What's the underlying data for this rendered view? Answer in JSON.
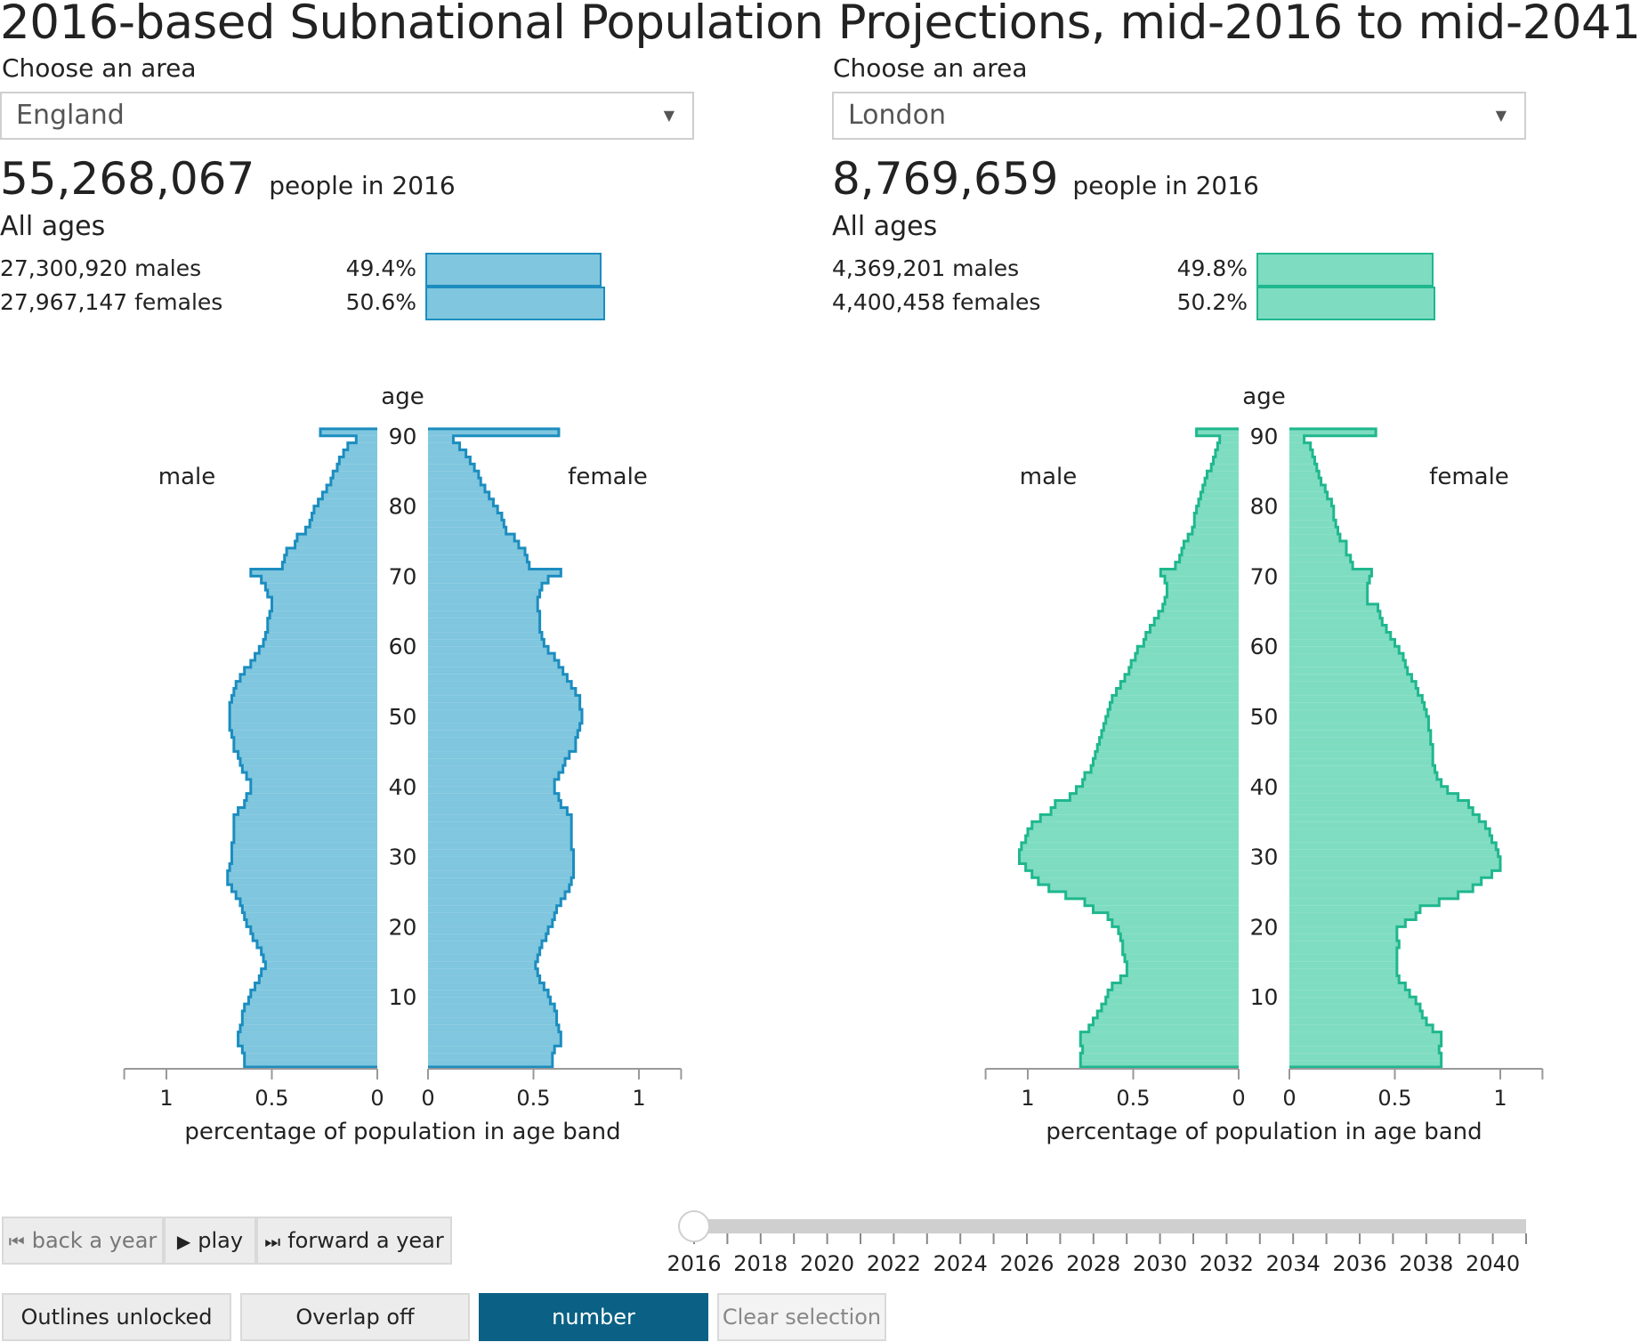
{
  "title": "2016-based Subnational Population Projections, mid-2016 to mid-2041",
  "panels": [
    {
      "choose_label": "Choose an area",
      "area": "England",
      "total": "55,268,067",
      "total_suffix": "people in 2016",
      "all_ages": "All ages",
      "males_text": "27,300,920 males",
      "males_pct": "49.4%",
      "males_share": 49.4,
      "females_text": "27,967,147 females",
      "females_pct": "50.6%",
      "females_share": 50.6,
      "color_fill": "#7fc6de",
      "color_stroke": "#1b8dbf"
    },
    {
      "choose_label": "Choose an area",
      "area": "London",
      "total": "8,769,659",
      "total_suffix": "people in 2016",
      "all_ages": "All ages",
      "males_text": "4,369,201 males",
      "males_pct": "49.8%",
      "males_share": 49.8,
      "females_text": "4,400,458 females",
      "females_pct": "50.2%",
      "females_share": 50.2,
      "color_fill": "#7edcc1",
      "color_stroke": "#1fb78e"
    }
  ],
  "chart_data": [
    {
      "type": "bar",
      "subtype": "population-pyramid",
      "area": "England",
      "year": 2016,
      "age_label": "age",
      "male_label": "male",
      "female_label": "female",
      "xlabel": "percentage of population in age band",
      "xlim": [
        0,
        1.2
      ],
      "x_ticks": [
        "1",
        "0.5",
        "0"
      ],
      "x_ticks_female": [
        "0",
        "0.5",
        "1"
      ],
      "x_tick_values": [
        1,
        0.5,
        0
      ],
      "age_ticks": [
        10,
        20,
        30,
        40,
        50,
        60,
        70,
        80,
        90
      ],
      "ages": [
        0,
        1,
        2,
        3,
        4,
        5,
        6,
        7,
        8,
        9,
        10,
        11,
        12,
        13,
        14,
        15,
        16,
        17,
        18,
        19,
        20,
        21,
        22,
        23,
        24,
        25,
        26,
        27,
        28,
        29,
        30,
        31,
        32,
        33,
        34,
        35,
        36,
        37,
        38,
        39,
        40,
        41,
        42,
        43,
        44,
        45,
        46,
        47,
        48,
        49,
        50,
        51,
        52,
        53,
        54,
        55,
        56,
        57,
        58,
        59,
        60,
        61,
        62,
        63,
        64,
        65,
        66,
        67,
        68,
        69,
        70,
        71,
        72,
        73,
        74,
        75,
        76,
        77,
        78,
        79,
        80,
        81,
        82,
        83,
        84,
        85,
        86,
        87,
        88,
        89,
        90
      ],
      "male": [
        0.63,
        0.63,
        0.64,
        0.66,
        0.66,
        0.65,
        0.64,
        0.64,
        0.63,
        0.61,
        0.6,
        0.58,
        0.56,
        0.55,
        0.53,
        0.54,
        0.55,
        0.57,
        0.59,
        0.6,
        0.62,
        0.63,
        0.64,
        0.65,
        0.67,
        0.69,
        0.71,
        0.71,
        0.7,
        0.69,
        0.69,
        0.69,
        0.68,
        0.68,
        0.68,
        0.68,
        0.66,
        0.63,
        0.62,
        0.6,
        0.6,
        0.62,
        0.64,
        0.65,
        0.66,
        0.68,
        0.68,
        0.69,
        0.7,
        0.7,
        0.7,
        0.7,
        0.69,
        0.68,
        0.67,
        0.65,
        0.63,
        0.6,
        0.58,
        0.56,
        0.54,
        0.53,
        0.52,
        0.52,
        0.51,
        0.5,
        0.5,
        0.52,
        0.53,
        0.55,
        0.6,
        0.45,
        0.44,
        0.43,
        0.39,
        0.38,
        0.34,
        0.32,
        0.31,
        0.3,
        0.28,
        0.26,
        0.24,
        0.22,
        0.21,
        0.19,
        0.18,
        0.16,
        0.14,
        0.1,
        0.27
      ],
      "female": [
        0.59,
        0.59,
        0.6,
        0.63,
        0.63,
        0.62,
        0.61,
        0.61,
        0.6,
        0.58,
        0.57,
        0.55,
        0.53,
        0.52,
        0.51,
        0.52,
        0.53,
        0.54,
        0.56,
        0.57,
        0.59,
        0.6,
        0.61,
        0.63,
        0.65,
        0.67,
        0.68,
        0.69,
        0.69,
        0.69,
        0.69,
        0.68,
        0.68,
        0.68,
        0.68,
        0.68,
        0.66,
        0.63,
        0.62,
        0.6,
        0.6,
        0.62,
        0.64,
        0.65,
        0.67,
        0.7,
        0.7,
        0.71,
        0.72,
        0.73,
        0.73,
        0.72,
        0.72,
        0.7,
        0.68,
        0.66,
        0.64,
        0.62,
        0.6,
        0.57,
        0.55,
        0.54,
        0.53,
        0.53,
        0.53,
        0.52,
        0.52,
        0.53,
        0.54,
        0.57,
        0.63,
        0.48,
        0.47,
        0.46,
        0.43,
        0.41,
        0.37,
        0.36,
        0.35,
        0.33,
        0.31,
        0.29,
        0.27,
        0.25,
        0.24,
        0.22,
        0.2,
        0.18,
        0.15,
        0.12,
        0.62
      ]
    },
    {
      "type": "bar",
      "subtype": "population-pyramid",
      "area": "London",
      "year": 2016,
      "age_label": "age",
      "male_label": "male",
      "female_label": "female",
      "xlabel": "percentage of population in age band",
      "xlim": [
        0,
        1.2
      ],
      "x_ticks": [
        "1",
        "0.5",
        "0"
      ],
      "x_ticks_female": [
        "0",
        "0.5",
        "1"
      ],
      "x_tick_values": [
        1,
        0.5,
        0
      ],
      "age_ticks": [
        10,
        20,
        30,
        40,
        50,
        60,
        70,
        80,
        90
      ],
      "ages": [
        0,
        1,
        2,
        3,
        4,
        5,
        6,
        7,
        8,
        9,
        10,
        11,
        12,
        13,
        14,
        15,
        16,
        17,
        18,
        19,
        20,
        21,
        22,
        23,
        24,
        25,
        26,
        27,
        28,
        29,
        30,
        31,
        32,
        33,
        34,
        35,
        36,
        37,
        38,
        39,
        40,
        41,
        42,
        43,
        44,
        45,
        46,
        47,
        48,
        49,
        50,
        51,
        52,
        53,
        54,
        55,
        56,
        57,
        58,
        59,
        60,
        61,
        62,
        63,
        64,
        65,
        66,
        67,
        68,
        69,
        70,
        71,
        72,
        73,
        74,
        75,
        76,
        77,
        78,
        79,
        80,
        81,
        82,
        83,
        84,
        85,
        86,
        87,
        88,
        89,
        90
      ],
      "male": [
        0.75,
        0.75,
        0.74,
        0.75,
        0.75,
        0.71,
        0.69,
        0.67,
        0.65,
        0.63,
        0.62,
        0.6,
        0.56,
        0.53,
        0.53,
        0.54,
        0.55,
        0.55,
        0.56,
        0.57,
        0.6,
        0.62,
        0.69,
        0.73,
        0.82,
        0.9,
        0.95,
        0.98,
        1.01,
        1.04,
        1.04,
        1.03,
        1.01,
        1.0,
        0.98,
        0.94,
        0.89,
        0.87,
        0.8,
        0.77,
        0.74,
        0.73,
        0.7,
        0.69,
        0.68,
        0.67,
        0.66,
        0.65,
        0.64,
        0.63,
        0.62,
        0.61,
        0.6,
        0.58,
        0.56,
        0.54,
        0.52,
        0.51,
        0.49,
        0.48,
        0.45,
        0.44,
        0.42,
        0.4,
        0.38,
        0.36,
        0.35,
        0.34,
        0.34,
        0.35,
        0.37,
        0.3,
        0.28,
        0.27,
        0.26,
        0.24,
        0.22,
        0.21,
        0.21,
        0.2,
        0.19,
        0.18,
        0.17,
        0.16,
        0.15,
        0.13,
        0.12,
        0.11,
        0.1,
        0.09,
        0.2
      ],
      "female": [
        0.72,
        0.72,
        0.71,
        0.72,
        0.72,
        0.68,
        0.65,
        0.63,
        0.62,
        0.6,
        0.57,
        0.55,
        0.52,
        0.51,
        0.51,
        0.51,
        0.51,
        0.52,
        0.51,
        0.51,
        0.55,
        0.6,
        0.62,
        0.71,
        0.8,
        0.87,
        0.91,
        0.96,
        1.0,
        1.0,
        0.99,
        0.98,
        0.96,
        0.95,
        0.93,
        0.9,
        0.87,
        0.85,
        0.8,
        0.75,
        0.72,
        0.7,
        0.69,
        0.68,
        0.68,
        0.68,
        0.67,
        0.67,
        0.66,
        0.66,
        0.65,
        0.64,
        0.63,
        0.61,
        0.6,
        0.58,
        0.56,
        0.55,
        0.54,
        0.52,
        0.5,
        0.48,
        0.46,
        0.44,
        0.43,
        0.42,
        0.37,
        0.37,
        0.37,
        0.38,
        0.39,
        0.3,
        0.29,
        0.27,
        0.27,
        0.24,
        0.23,
        0.22,
        0.21,
        0.21,
        0.2,
        0.18,
        0.17,
        0.15,
        0.14,
        0.13,
        0.12,
        0.11,
        0.1,
        0.07,
        0.41
      ]
    }
  ],
  "controls": {
    "back_label": "back a year",
    "play_label": "play",
    "forward_label": "forward a year",
    "outlines_label": "Outlines unlocked",
    "overlap_label": "Overlap off",
    "number_label": "number",
    "clear_label": "Clear selection"
  },
  "timeline": {
    "current_year": 2016,
    "min_year": 2016,
    "max_year": 2041,
    "year_labels": [
      "2016",
      "2018",
      "2020",
      "2022",
      "2024",
      "2026",
      "2028",
      "2030",
      "2032",
      "2034",
      "2036",
      "2038",
      "2040"
    ]
  }
}
